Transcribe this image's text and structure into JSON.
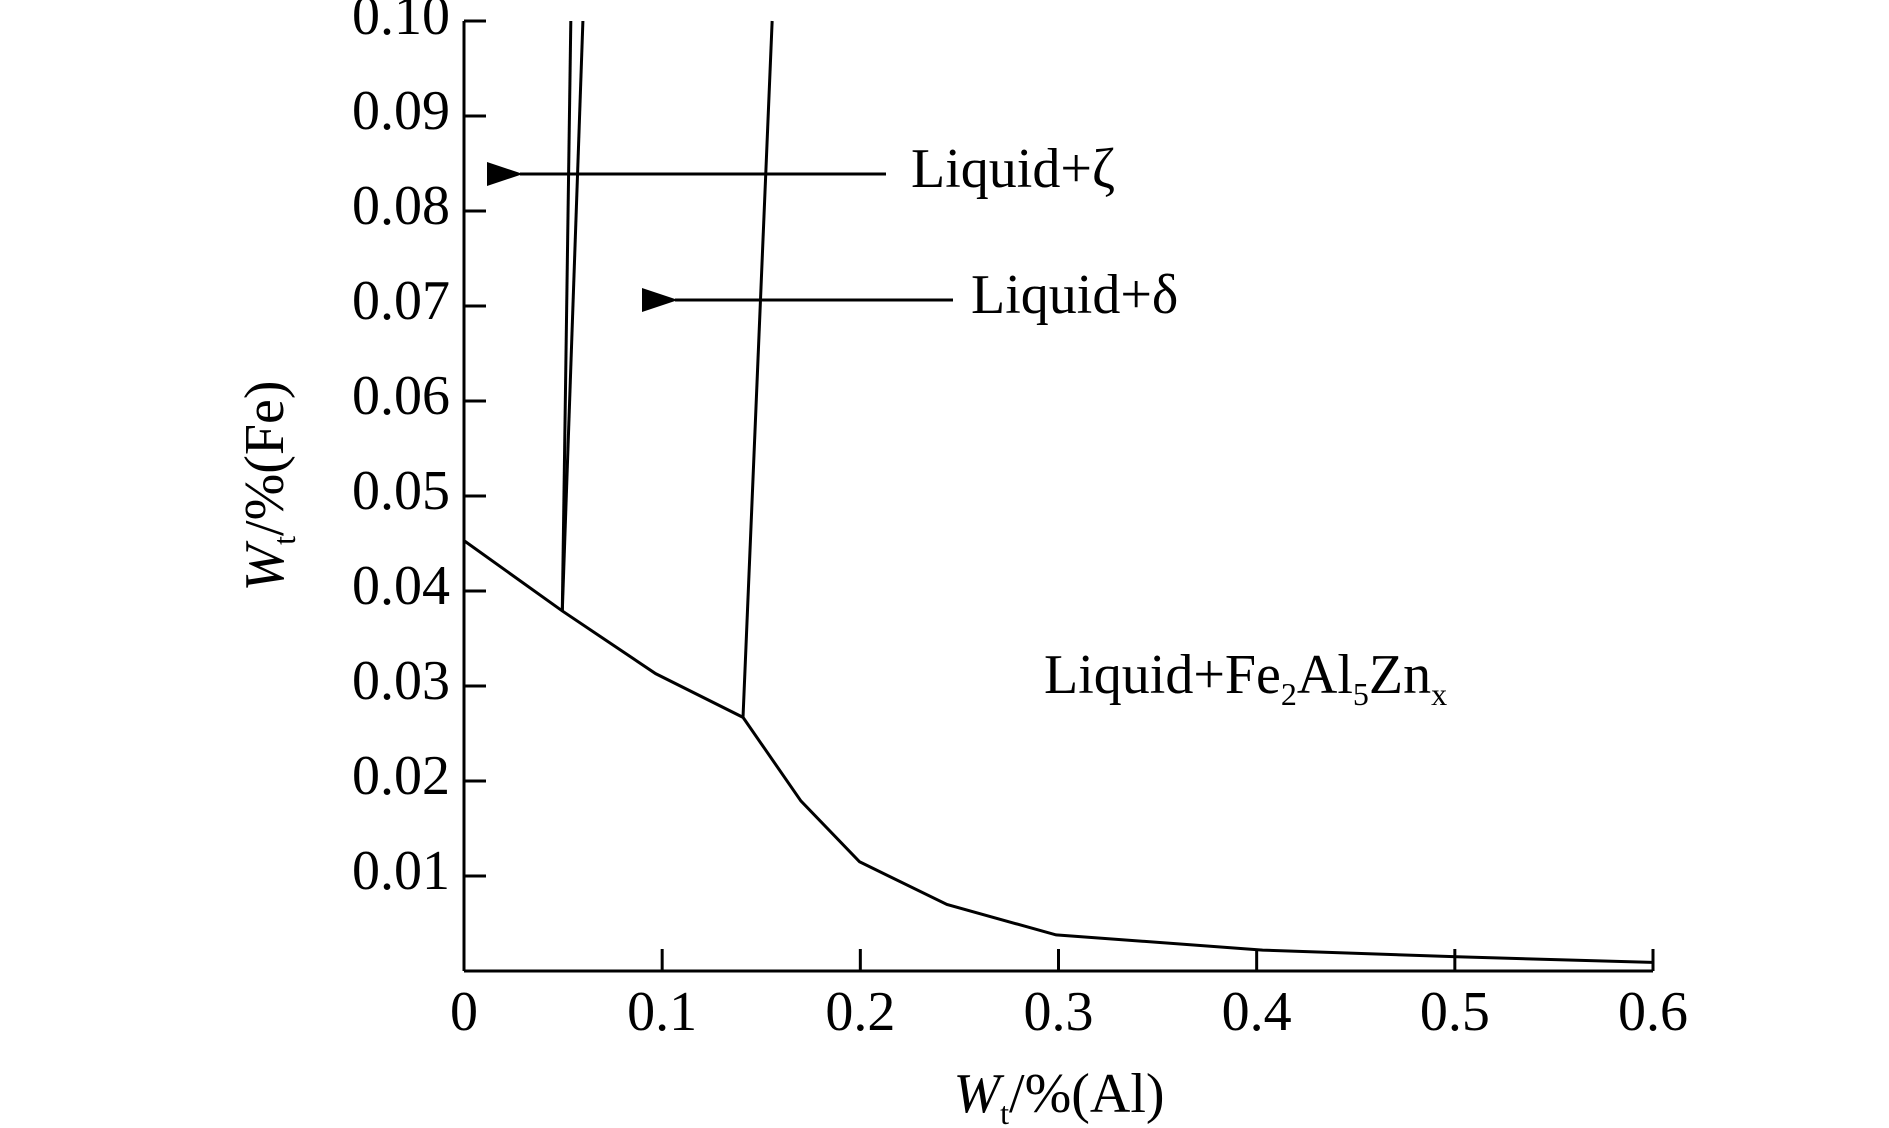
{
  "chart_data": {
    "type": "line",
    "x_label": [
      "W",
      "t",
      "/%(Al)"
    ],
    "y_label": [
      "W",
      "t",
      "/%(Fe)"
    ],
    "xlim": [
      0,
      0.6
    ],
    "xticks": [
      0,
      0.1,
      0.2,
      0.3,
      0.4,
      0.5,
      0.6
    ],
    "ylim": [
      0,
      0.1
    ],
    "yticks": [
      0.01,
      0.02,
      0.03,
      0.04,
      0.05,
      0.06,
      0.07,
      0.08,
      0.09,
      {
        "value": 0.1,
        "label": "0.10"
      }
    ],
    "series": [
      {
        "color": "#000000",
        "x": [
          0,
          0.0496,
          0.0967,
          0.1408,
          0.17,
          0.1996,
          0.2437,
          0.2988,
          0.403,
          0.501,
          0.6
        ],
        "values": [
          0.0453,
          0.0379,
          0.0313,
          0.0267,
          0.0179,
          0.0115,
          0.007,
          0.0038,
          0.0022,
          0.0015,
          0.0009
        ]
      },
      {
        "color": "#000000",
        "x": [
          0.0496,
          0.0539
        ],
        "values": [
          0.0379,
          0.1
        ]
      },
      {
        "color": "#000000",
        "x": [
          0.0496,
          0.06
        ],
        "values": [
          0.0379,
          0.1
        ]
      },
      {
        "color": "#000000",
        "x": [
          0.1408,
          0.1555
        ],
        "values": [
          0.0267,
          0.1
        ]
      }
    ],
    "annotations": [
      [
        "Liquid+ζ"
      ],
      [
        "Liquid+δ"
      ],
      [
        "Liquid+Fe",
        "2",
        "Al",
        "5",
        "Zn",
        "x"
      ]
    ]
  }
}
